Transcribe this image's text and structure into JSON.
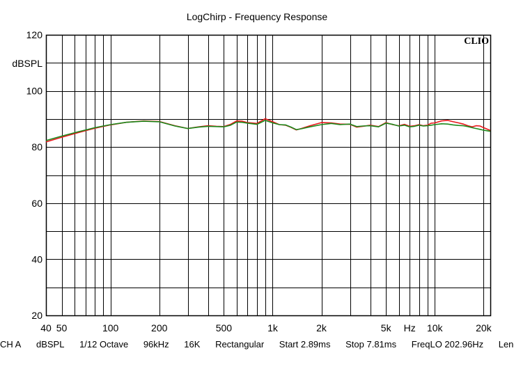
{
  "title": "LogChirp - Frequency Response",
  "brand": "CLIO",
  "status_bar": [
    "CH A",
    "dBSPL",
    "1/12 Octave",
    "96kHz",
    "16K",
    "Rectangular",
    "Start 2.89ms",
    "Stop 7.81ms",
    "FreqLO 202.96Hz",
    "Length"
  ],
  "chart_data": {
    "type": "line",
    "title": "LogChirp - Frequency Response",
    "ylabel": "dBSPL",
    "xlabel": "",
    "xscale": "log",
    "xlim": [
      40,
      22000
    ],
    "ylim": [
      20,
      120
    ],
    "grid": true,
    "y_ticks": [
      {
        "value": 20,
        "label": "20"
      },
      {
        "value": 40,
        "label": "40"
      },
      {
        "value": 60,
        "label": "60"
      },
      {
        "value": 80,
        "label": "80"
      },
      {
        "value": 100,
        "label": "100"
      },
      {
        "value": 120,
        "label": "120"
      }
    ],
    "x_ticks": [
      {
        "value": 40,
        "label": "40"
      },
      {
        "value": 50,
        "label": "50"
      },
      {
        "value": 100,
        "label": "100"
      },
      {
        "value": 200,
        "label": "200"
      },
      {
        "value": 500,
        "label": "500"
      },
      {
        "value": 1000,
        "label": "1k"
      },
      {
        "value": 2000,
        "label": "2k"
      },
      {
        "value": 5000,
        "label": "5k"
      },
      {
        "value": 10000,
        "label": "10k"
      },
      {
        "value": 20000,
        "label": "20k"
      }
    ],
    "unit_label": {
      "value": 7000,
      "label": "Hz"
    },
    "colors": {
      "series_red": "#e8161b",
      "series_green": "#1c8a1c",
      "grid": "#000000"
    },
    "x": [
      40,
      50,
      63,
      80,
      100,
      125,
      160,
      200,
      250,
      300,
      350,
      400,
      450,
      500,
      550,
      600,
      650,
      700,
      800,
      900,
      1000,
      1100,
      1200,
      1300,
      1400,
      1500,
      1700,
      2000,
      2300,
      2600,
      3000,
      3300,
      3600,
      4000,
      4500,
      5000,
      5500,
      6000,
      6500,
      7000,
      7500,
      8000,
      8500,
      9000,
      9500,
      10000,
      11000,
      12000,
      13000,
      14000,
      15000,
      16000,
      17000,
      18000,
      19000,
      20000,
      21000,
      22000
    ],
    "series": [
      {
        "color": "#e8161b",
        "values": [
          81.8,
          83.5,
          85.1,
          86.7,
          87.9,
          88.8,
          89.3,
          89.1,
          87.6,
          86.6,
          87.2,
          87.6,
          87.4,
          87.3,
          88.1,
          89.3,
          89.2,
          88.7,
          88.4,
          90.1,
          89.0,
          88.0,
          87.8,
          87.0,
          86.1,
          86.6,
          87.6,
          88.7,
          88.6,
          88.2,
          88.1,
          87.1,
          87.4,
          87.8,
          87.3,
          88.7,
          88.0,
          87.6,
          88.1,
          87.4,
          87.6,
          88.0,
          87.6,
          87.8,
          88.5,
          88.6,
          89.3,
          89.5,
          89.0,
          88.6,
          88.2,
          87.6,
          87.2,
          87.6,
          87.5,
          86.9,
          86.4,
          85.9
        ]
      },
      {
        "color": "#1c8a1c",
        "values": [
          82.3,
          83.9,
          85.4,
          86.9,
          88.0,
          88.8,
          89.2,
          89.0,
          87.5,
          86.6,
          87.1,
          87.4,
          87.3,
          87.2,
          87.8,
          88.9,
          88.8,
          88.5,
          88.1,
          89.5,
          88.6,
          88.0,
          87.9,
          87.1,
          86.2,
          86.5,
          87.2,
          88.0,
          88.4,
          88.0,
          88.2,
          87.3,
          87.5,
          87.6,
          87.2,
          88.5,
          88.1,
          87.5,
          87.8,
          87.2,
          87.4,
          87.8,
          87.5,
          87.6,
          87.8,
          88.0,
          88.3,
          88.2,
          87.9,
          87.7,
          87.6,
          87.3,
          86.9,
          86.6,
          86.3,
          86.0,
          85.8,
          85.6
        ]
      }
    ]
  }
}
